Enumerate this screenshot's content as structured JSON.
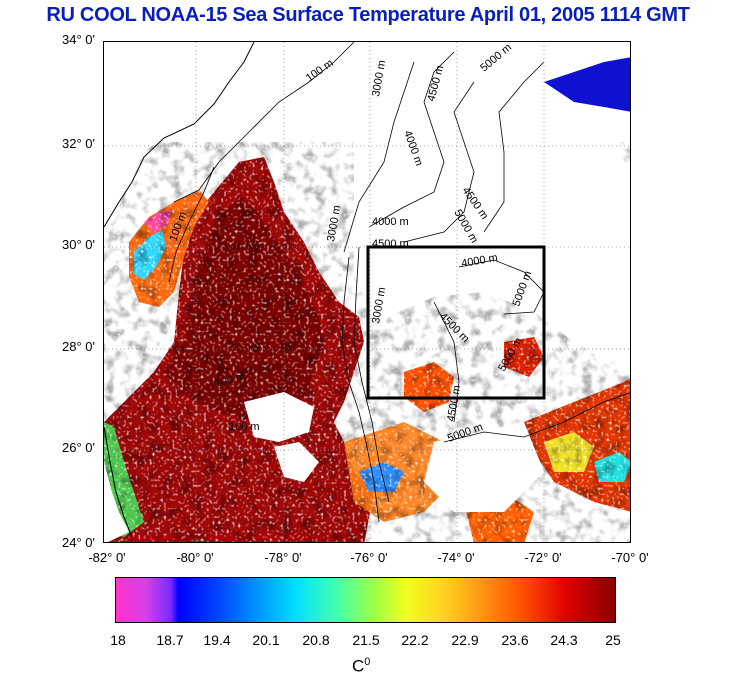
{
  "title": "RU COOL  NOAA-15 Sea Surface Temperature April 01, 2005 1114 GMT",
  "lat_labels": [
    "34° 0'",
    "32° 0'",
    "30° 0'",
    "28° 0'",
    "26° 0'",
    "24° 0'"
  ],
  "lon_labels": [
    "-82° 0'",
    "-80° 0'",
    "-78° 0'",
    "-76° 0'",
    "-74° 0'",
    "-72° 0'",
    "-70° 0'"
  ],
  "contour_labels": [
    "100 m",
    "100 m",
    "3000 m",
    "4000 m",
    "4500 m",
    "4500 m",
    "4000 m",
    "5000 m",
    "5000 m",
    "5000 m",
    "3000 m",
    "4000 m",
    "4500 m",
    "5000 m",
    "4500 m",
    "100 m",
    "100 m",
    "5000 m",
    "3000 m",
    "4500 m"
  ],
  "colorbar": {
    "ticks": [
      "18",
      "18.7",
      "19.4",
      "20.1",
      "20.8",
      "21.5",
      "22.2",
      "22.9",
      "23.6",
      "24.3",
      "25"
    ],
    "unit": "C",
    "unit_sup": "0",
    "colors": [
      "#ff33cc",
      "#0000ff",
      "#00e0ff",
      "#a0ff40",
      "#f0ff20",
      "#ff9010",
      "#e00000",
      "#8a0000"
    ]
  }
}
